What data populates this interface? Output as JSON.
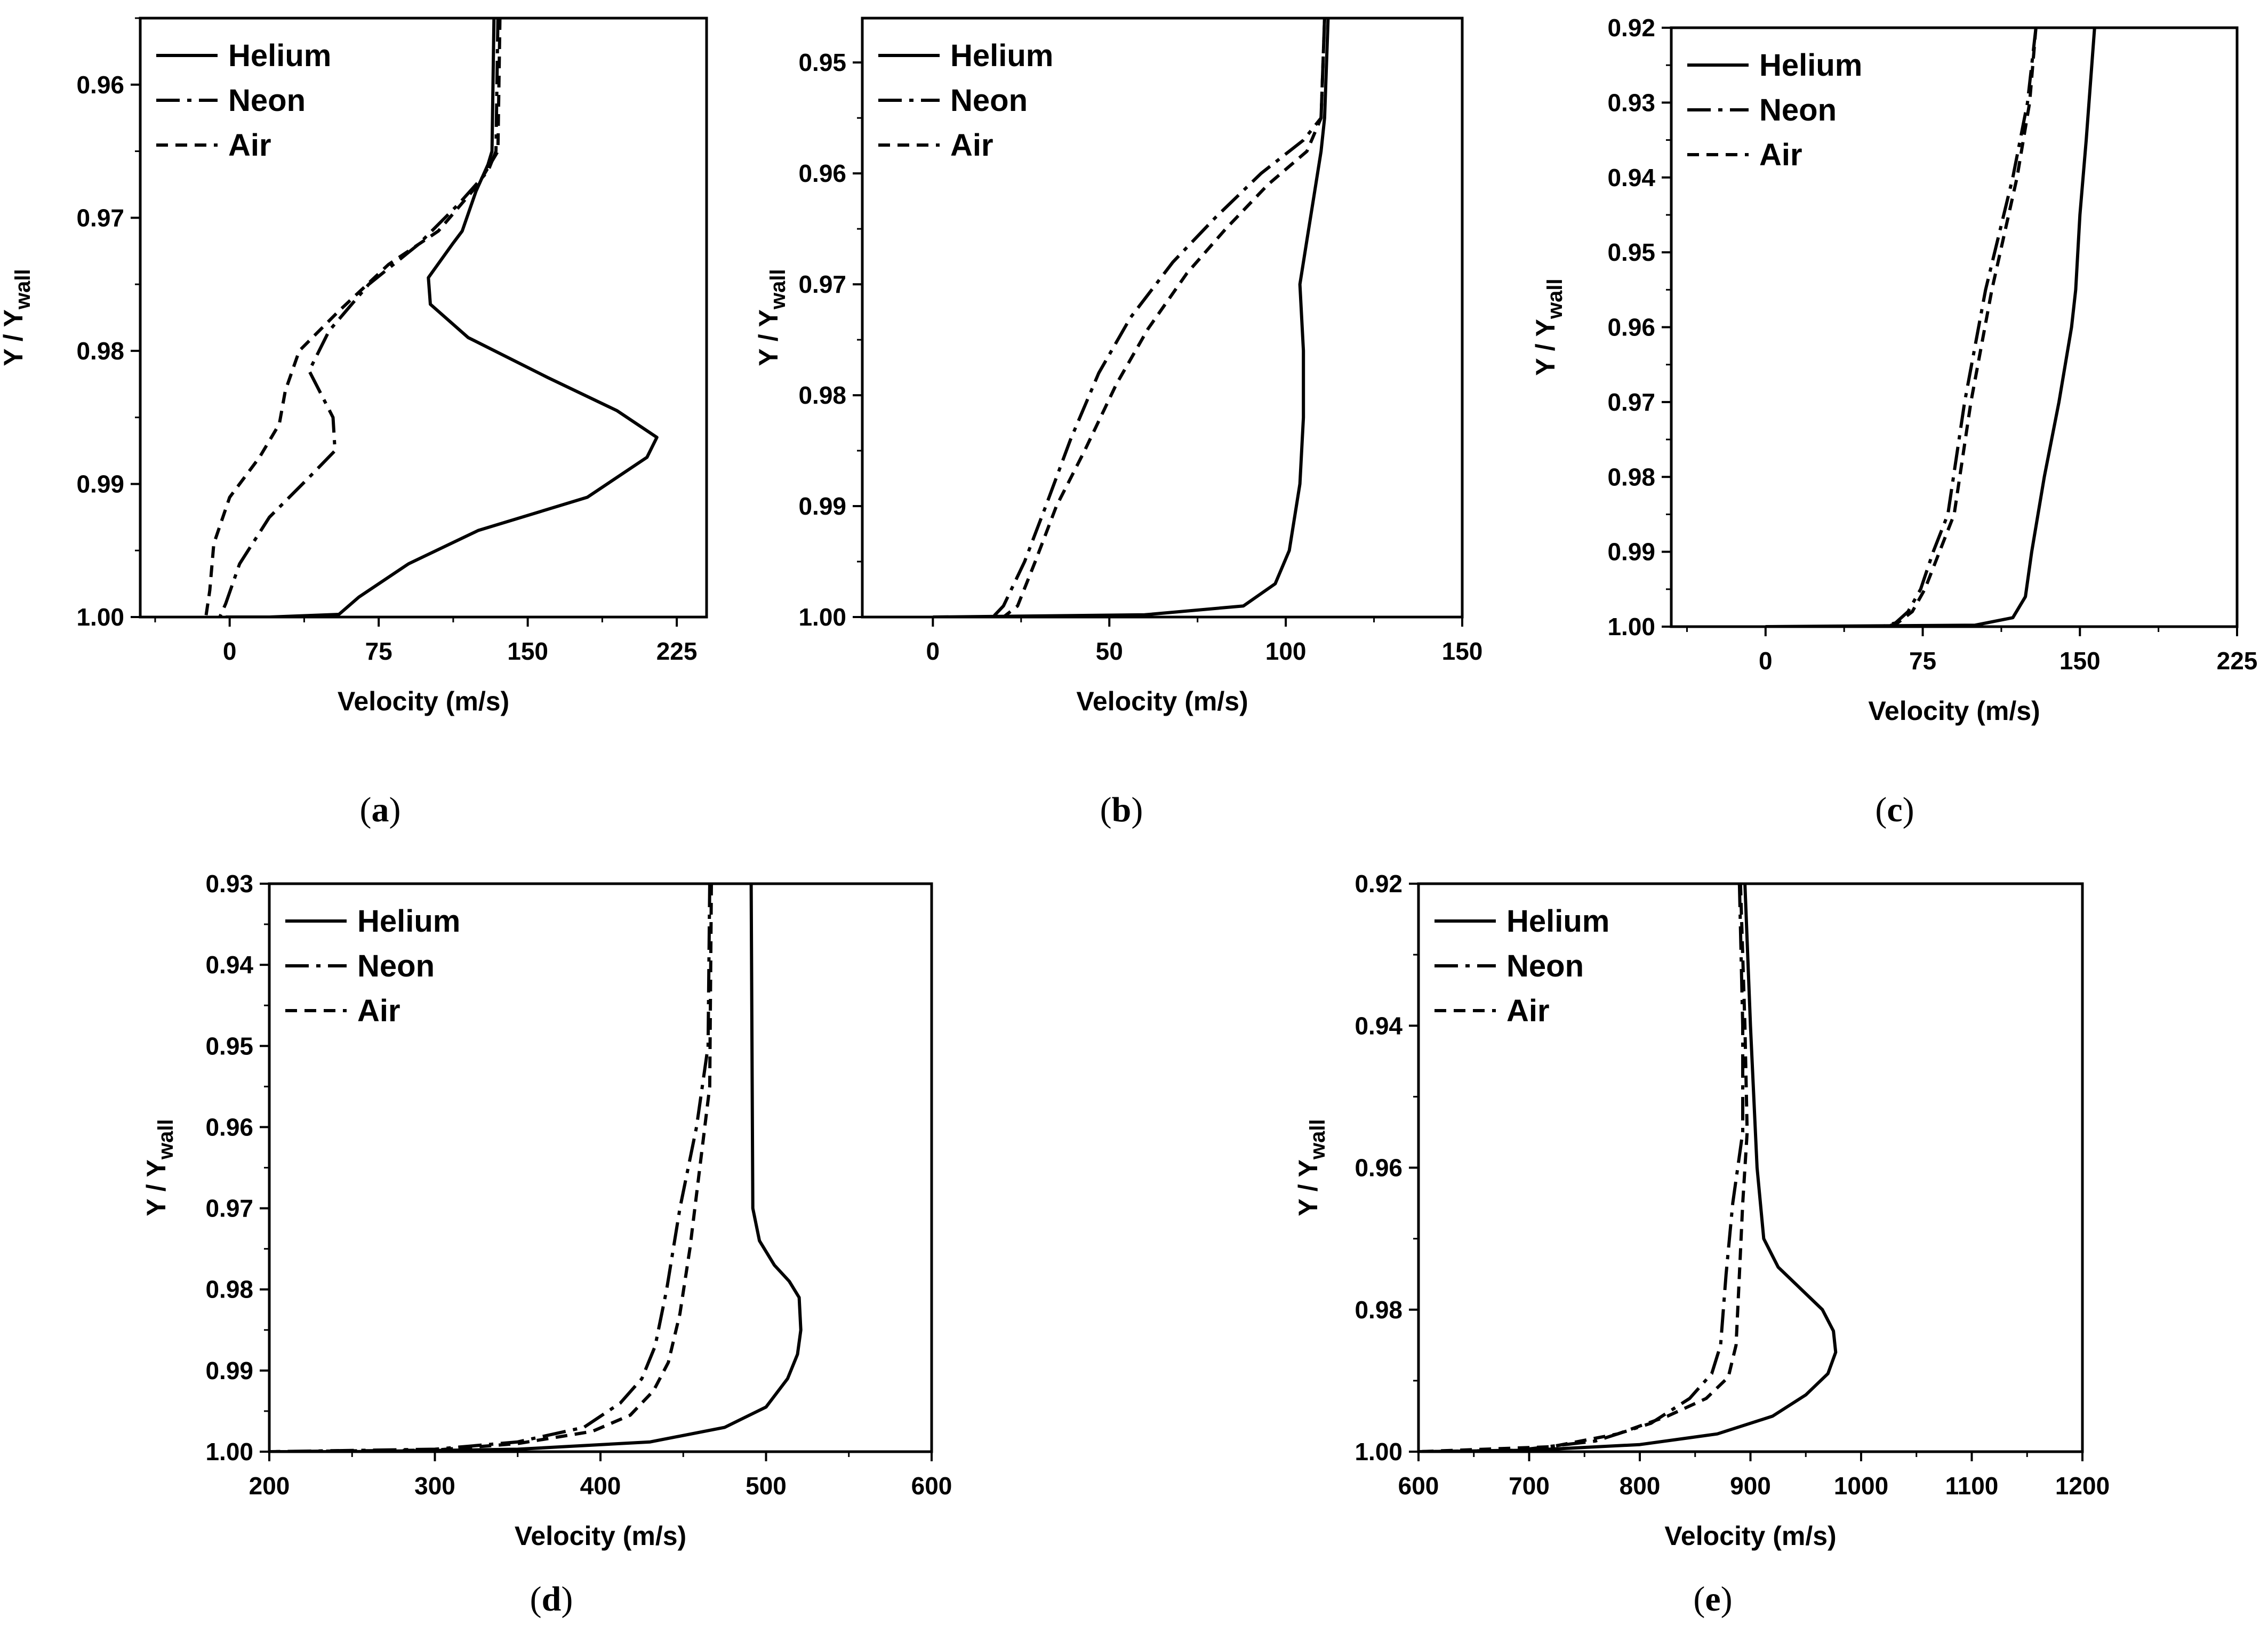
{
  "colors": {
    "line": "#000000",
    "background": "#ffffff"
  },
  "legend_labels": [
    "Helium",
    "Neon",
    "Air"
  ],
  "chart_data": [
    {
      "panel": "(a)",
      "panel_letter": "a",
      "type": "line",
      "xlabel": "Velocity (m/s)",
      "ylabel_main": "Y / Y",
      "ylabel_sub": "wall",
      "xlim": [
        -45,
        240
      ],
      "ylim": [
        0.955,
        1.0
      ],
      "xticks": [
        0,
        75,
        150,
        225
      ],
      "xtick_labels": [
        "0",
        "75",
        "150",
        "225"
      ],
      "yticks": [
        0.96,
        0.97,
        0.98,
        0.99,
        1.0
      ],
      "ytick_labels": [
        "0.96",
        "0.97",
        "0.98",
        "0.99",
        "1.00"
      ],
      "series": [
        {
          "name": "Helium",
          "style": "solid",
          "points": [
            [
              133,
              0.955
            ],
            [
              132,
              0.965
            ],
            [
              130,
              0.966
            ],
            [
              124,
              0.968
            ],
            [
              117,
              0.971
            ],
            [
              112,
              0.972
            ],
            [
              100,
              0.9745
            ],
            [
              101,
              0.9765
            ],
            [
              120,
              0.979
            ],
            [
              160,
              0.982
            ],
            [
              195,
              0.9845
            ],
            [
              215,
              0.9865
            ],
            [
              210,
              0.988
            ],
            [
              180,
              0.991
            ],
            [
              125,
              0.9935
            ],
            [
              90,
              0.996
            ],
            [
              65,
              0.9985
            ],
            [
              55,
              0.9998
            ],
            [
              20,
              1.0
            ],
            [
              -2,
              1.0
            ]
          ]
        },
        {
          "name": "Neon",
          "style": "dashdot",
          "points": [
            [
              135,
              0.955
            ],
            [
              134,
              0.965
            ],
            [
              130,
              0.9665
            ],
            [
              115,
              0.969
            ],
            [
              95,
              0.972
            ],
            [
              70,
              0.975
            ],
            [
              50,
              0.9785
            ],
            [
              40,
              0.9815
            ],
            [
              52,
              0.985
            ],
            [
              53,
              0.9875
            ],
            [
              40,
              0.9895
            ],
            [
              20,
              0.9925
            ],
            [
              5,
              0.996
            ],
            [
              -2,
              0.999
            ],
            [
              -5,
              1.0
            ]
          ]
        },
        {
          "name": "Air",
          "style": "dashed",
          "points": [
            [
              136,
              0.955
            ],
            [
              135,
              0.965
            ],
            [
              125,
              0.9675
            ],
            [
              105,
              0.971
            ],
            [
              80,
              0.9735
            ],
            [
              55,
              0.977
            ],
            [
              35,
              0.98
            ],
            [
              28,
              0.983
            ],
            [
              25,
              0.9855
            ],
            [
              15,
              0.988
            ],
            [
              0,
              0.991
            ],
            [
              -8,
              0.9945
            ],
            [
              -10,
              0.998
            ],
            [
              -12,
              1.0
            ]
          ]
        }
      ]
    },
    {
      "panel": "(b)",
      "panel_letter": "b",
      "type": "line",
      "xlabel": "Velocity (m/s)",
      "ylabel_main": "Y / Y",
      "ylabel_sub": "wall",
      "xlim": [
        -20,
        150
      ],
      "ylim": [
        0.946,
        1.0
      ],
      "xticks": [
        0,
        50,
        100,
        150
      ],
      "xtick_labels": [
        "0",
        "50",
        "100",
        "150"
      ],
      "yticks": [
        0.95,
        0.96,
        0.97,
        0.98,
        0.99,
        1.0
      ],
      "ytick_labels": [
        "0.95",
        "0.96",
        "0.97",
        "0.98",
        "0.99",
        "1.00"
      ],
      "series": [
        {
          "name": "Helium",
          "style": "solid",
          "points": [
            [
              112,
              0.946
            ],
            [
              111,
              0.955
            ],
            [
              110,
              0.958
            ],
            [
              108,
              0.962
            ],
            [
              106,
              0.966
            ],
            [
              104,
              0.97
            ],
            [
              105,
              0.976
            ],
            [
              105,
              0.982
            ],
            [
              104,
              0.988
            ],
            [
              101,
              0.994
            ],
            [
              97,
              0.997
            ],
            [
              88,
              0.999
            ],
            [
              60,
              0.9998
            ],
            [
              0,
              1.0
            ]
          ]
        },
        {
          "name": "Neon",
          "style": "dashdot",
          "points": [
            [
              111,
              0.946
            ],
            [
              110,
              0.955
            ],
            [
              105,
              0.957
            ],
            [
              93,
              0.96
            ],
            [
              80,
              0.964
            ],
            [
              68,
              0.968
            ],
            [
              56,
              0.973
            ],
            [
              47,
              0.978
            ],
            [
              39,
              0.984
            ],
            [
              32,
              0.99
            ],
            [
              26,
              0.995
            ],
            [
              20,
              0.999
            ],
            [
              17,
              1.0
            ]
          ]
        },
        {
          "name": "Air",
          "style": "dashed",
          "points": [
            [
              111,
              0.946
            ],
            [
              110,
              0.955
            ],
            [
              106,
              0.958
            ],
            [
              95,
              0.961
            ],
            [
              83,
              0.965
            ],
            [
              72,
              0.969
            ],
            [
              61,
              0.974
            ],
            [
              52,
              0.979
            ],
            [
              43,
              0.985
            ],
            [
              35,
              0.99
            ],
            [
              29,
              0.995
            ],
            [
              24,
              0.999
            ],
            [
              20,
              1.0
            ]
          ]
        }
      ]
    },
    {
      "panel": "(c)",
      "panel_letter": "c",
      "type": "line",
      "xlabel": "Velocity (m/s)",
      "ylabel_main": "Y / Y",
      "ylabel_sub": "wall",
      "xlim": [
        -45,
        225
      ],
      "ylim": [
        0.92,
        1.0
      ],
      "xticks": [
        0,
        75,
        150,
        225
      ],
      "xtick_labels": [
        "0",
        "75",
        "150",
        "225"
      ],
      "yticks": [
        0.92,
        0.93,
        0.94,
        0.95,
        0.96,
        0.97,
        0.98,
        0.99,
        1.0
      ],
      "ytick_labels": [
        "0.92",
        "0.93",
        "0.94",
        "0.95",
        "0.96",
        "0.97",
        "0.98",
        "0.99",
        "1.00"
      ],
      "series": [
        {
          "name": "Helium",
          "style": "solid",
          "points": [
            [
              157,
              0.92
            ],
            [
              153,
              0.935
            ],
            [
              150,
              0.945
            ],
            [
              148,
              0.955
            ],
            [
              146,
              0.96
            ],
            [
              140,
              0.97
            ],
            [
              133,
              0.98
            ],
            [
              127,
              0.99
            ],
            [
              124,
              0.996
            ],
            [
              118,
              0.9988
            ],
            [
              100,
              0.9998
            ],
            [
              0,
              1.0
            ]
          ]
        },
        {
          "name": "Neon",
          "style": "dashdot",
          "points": [
            [
              129,
              0.92
            ],
            [
              125,
              0.93
            ],
            [
              118,
              0.94
            ],
            [
              105,
              0.955
            ],
            [
              95,
              0.97
            ],
            [
              87,
              0.985
            ],
            [
              80,
              0.99
            ],
            [
              74,
              0.995
            ],
            [
              68,
              0.998
            ],
            [
              62,
              0.9995
            ],
            [
              55,
              1.0
            ],
            [
              0,
              1.0
            ]
          ]
        },
        {
          "name": "Air",
          "style": "dashed",
          "points": [
            [
              129,
              0.92
            ],
            [
              126,
              0.93
            ],
            [
              120,
              0.94
            ],
            [
              108,
              0.955
            ],
            [
              98,
              0.97
            ],
            [
              90,
              0.985
            ],
            [
              83,
              0.99
            ],
            [
              76,
              0.995
            ],
            [
              70,
              0.998
            ],
            [
              63,
              0.9995
            ],
            [
              58,
              1.0
            ],
            [
              0,
              1.0
            ]
          ]
        }
      ]
    },
    {
      "panel": "(d)",
      "panel_letter": "d",
      "type": "line",
      "xlabel": "Velocity (m/s)",
      "ylabel_main": "Y / Y",
      "ylabel_sub": "wall",
      "xlim": [
        200,
        600
      ],
      "ylim": [
        0.93,
        1.0
      ],
      "xticks": [
        200,
        300,
        400,
        500,
        600
      ],
      "xtick_labels": [
        "200",
        "300",
        "400",
        "500",
        "600"
      ],
      "yticks": [
        0.93,
        0.94,
        0.95,
        0.96,
        0.97,
        0.98,
        0.99,
        1.0
      ],
      "ytick_labels": [
        "0.93",
        "0.94",
        "0.95",
        "0.96",
        "0.97",
        "0.98",
        "0.99",
        "1.00"
      ],
      "series": [
        {
          "name": "Helium",
          "style": "solid",
          "points": [
            [
              491,
              0.93
            ],
            [
              492,
              0.97
            ],
            [
              496,
              0.974
            ],
            [
              505,
              0.977
            ],
            [
              514,
              0.979
            ],
            [
              520,
              0.981
            ],
            [
              521,
              0.985
            ],
            [
              519,
              0.988
            ],
            [
              513,
              0.991
            ],
            [
              500,
              0.9945
            ],
            [
              475,
              0.997
            ],
            [
              430,
              0.9988
            ],
            [
              350,
              0.9997
            ],
            [
              250,
              1.0
            ],
            [
              200,
              1.0
            ]
          ]
        },
        {
          "name": "Neon",
          "style": "dashdot",
          "points": [
            [
              466,
              0.93
            ],
            [
              465,
              0.95
            ],
            [
              458,
              0.96
            ],
            [
              448,
              0.97
            ],
            [
              440,
              0.98
            ],
            [
              433,
              0.987
            ],
            [
              425,
              0.991
            ],
            [
              412,
              0.994
            ],
            [
              390,
              0.997
            ],
            [
              350,
              0.9988
            ],
            [
              300,
              0.9997
            ],
            [
              200,
              1.0
            ]
          ]
        },
        {
          "name": "Air",
          "style": "dashed",
          "points": [
            [
              467,
              0.93
            ],
            [
              466,
              0.955
            ],
            [
              460,
              0.965
            ],
            [
              454,
              0.975
            ],
            [
              448,
              0.983
            ],
            [
              441,
              0.989
            ],
            [
              432,
              0.9925
            ],
            [
              418,
              0.9955
            ],
            [
              395,
              0.9975
            ],
            [
              350,
              0.999
            ],
            [
              300,
              0.9998
            ],
            [
              200,
              1.0
            ]
          ]
        }
      ]
    },
    {
      "panel": "(e)",
      "panel_letter": "e",
      "type": "line",
      "xlabel": "Velocity (m/s)",
      "ylabel_main": "Y / Y",
      "ylabel_sub": "wall",
      "xlim": [
        600,
        1200
      ],
      "ylim": [
        0.92,
        1.0
      ],
      "xticks": [
        600,
        700,
        800,
        900,
        1000,
        1100,
        1200
      ],
      "xtick_labels": [
        "600",
        "700",
        "800",
        "900",
        "1000",
        "1100",
        "1200"
      ],
      "yticks": [
        0.92,
        0.94,
        0.96,
        0.98,
        1.0
      ],
      "ytick_labels": [
        "0.92",
        "0.94",
        "0.96",
        "0.98",
        "1.00"
      ],
      "series": [
        {
          "name": "Helium",
          "style": "solid",
          "points": [
            [
              895,
              0.92
            ],
            [
              900,
              0.94
            ],
            [
              906,
              0.96
            ],
            [
              912,
              0.97
            ],
            [
              925,
              0.974
            ],
            [
              945,
              0.977
            ],
            [
              965,
              0.98
            ],
            [
              975,
              0.983
            ],
            [
              977,
              0.986
            ],
            [
              970,
              0.989
            ],
            [
              950,
              0.992
            ],
            [
              920,
              0.995
            ],
            [
              870,
              0.9975
            ],
            [
              800,
              0.999
            ],
            [
              700,
              0.9998
            ],
            [
              600,
              1.0
            ]
          ]
        },
        {
          "name": "Neon",
          "style": "dashdot",
          "points": [
            [
              890,
              0.92
            ],
            [
              893,
              0.94
            ],
            [
              893,
              0.955
            ],
            [
              884,
              0.965
            ],
            [
              878,
              0.975
            ],
            [
              873,
              0.985
            ],
            [
              865,
              0.989
            ],
            [
              845,
              0.9925
            ],
            [
              810,
              0.996
            ],
            [
              760,
              0.9985
            ],
            [
              690,
              0.9998
            ],
            [
              600,
              1.0
            ]
          ]
        },
        {
          "name": "Air",
          "style": "dashed",
          "points": [
            [
              891,
              0.92
            ],
            [
              895,
              0.94
            ],
            [
              897,
              0.955
            ],
            [
              893,
              0.965
            ],
            [
              890,
              0.975
            ],
            [
              887,
              0.985
            ],
            [
              880,
              0.9895
            ],
            [
              860,
              0.9925
            ],
            [
              825,
              0.995
            ],
            [
              780,
              0.9975
            ],
            [
              720,
              0.9993
            ],
            [
              600,
              1.0
            ]
          ]
        }
      ]
    }
  ]
}
